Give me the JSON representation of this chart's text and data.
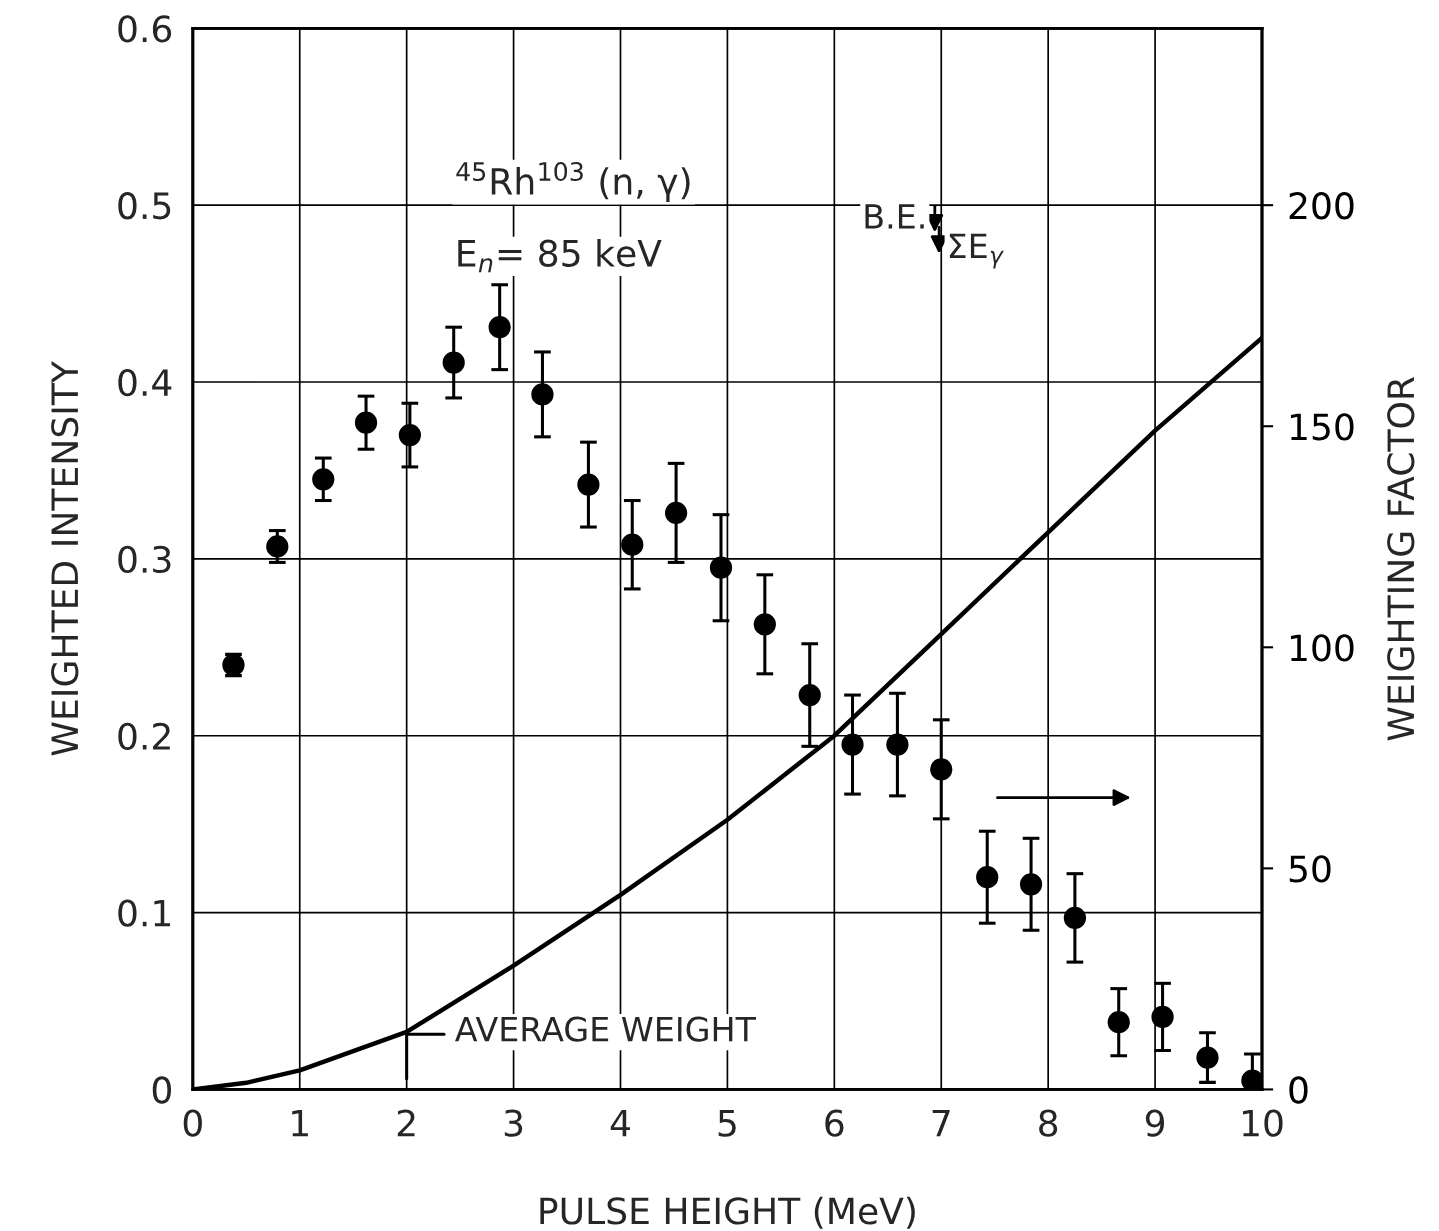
{
  "chart_data": {
    "type": "scatter",
    "xlabel": "PULSE HEIGHT (MeV)",
    "ylabel": "WEIGHTED INTENSITY",
    "y2label": "WEIGHTING FACTOR",
    "xlim": [
      0,
      10
    ],
    "xticks": [
      0,
      1,
      2,
      3,
      4,
      5,
      6,
      7,
      8,
      9,
      10
    ],
    "ylim": [
      0,
      0.6
    ],
    "yticks": [
      0,
      0.1,
      0.2,
      0.3,
      0.4,
      0.5,
      0.6
    ],
    "y2lim": [
      0,
      240
    ],
    "y2ticks": [
      0,
      50,
      100,
      150,
      200
    ],
    "grid": true,
    "marker": "circle",
    "series": [
      {
        "color": "#000000",
        "x": [
          0.38,
          0.79,
          1.22,
          1.62,
          2.03,
          2.44,
          2.87,
          3.27,
          3.7,
          4.11,
          4.52,
          4.94,
          5.35,
          5.77,
          6.17,
          6.59,
          7.0,
          7.43,
          7.84,
          8.25,
          8.66,
          9.07,
          9.49,
          9.91
        ],
        "values": [
          0.24,
          0.307,
          0.345,
          0.377,
          0.37,
          0.411,
          0.431,
          0.393,
          0.342,
          0.308,
          0.326,
          0.295,
          0.263,
          0.223,
          0.195,
          0.195,
          0.181,
          0.12,
          0.116,
          0.097,
          0.038,
          0.041,
          0.018,
          0.005
        ],
        "errors": [
          0.006,
          0.009,
          0.012,
          0.015,
          0.018,
          0.02,
          0.024,
          0.024,
          0.024,
          0.025,
          0.028,
          0.03,
          0.028,
          0.029,
          0.028,
          0.029,
          0.028,
          0.026,
          0.026,
          0.025,
          0.019,
          0.019,
          0.014,
          0.015
        ]
      },
      {
        "type": "line",
        "axis": "y2",
        "color": "#000000",
        "marker": "none",
        "line_style": "solid",
        "x": [
          0,
          0.5,
          1,
          2,
          3,
          4,
          5,
          6,
          7,
          8,
          9,
          10
        ],
        "values": [
          0,
          1.5,
          4.3,
          13,
          28,
          44,
          61,
          80,
          103,
          126,
          149,
          170
        ]
      }
    ],
    "annotations": [
      "$^{45}$Rh$^{103}$ (n, γ)",
      "E$_{n}$= 85 keV",
      "B.E.",
      "ΣE$_{γ}$",
      "AVERAGE WEIGHT"
    ]
  }
}
